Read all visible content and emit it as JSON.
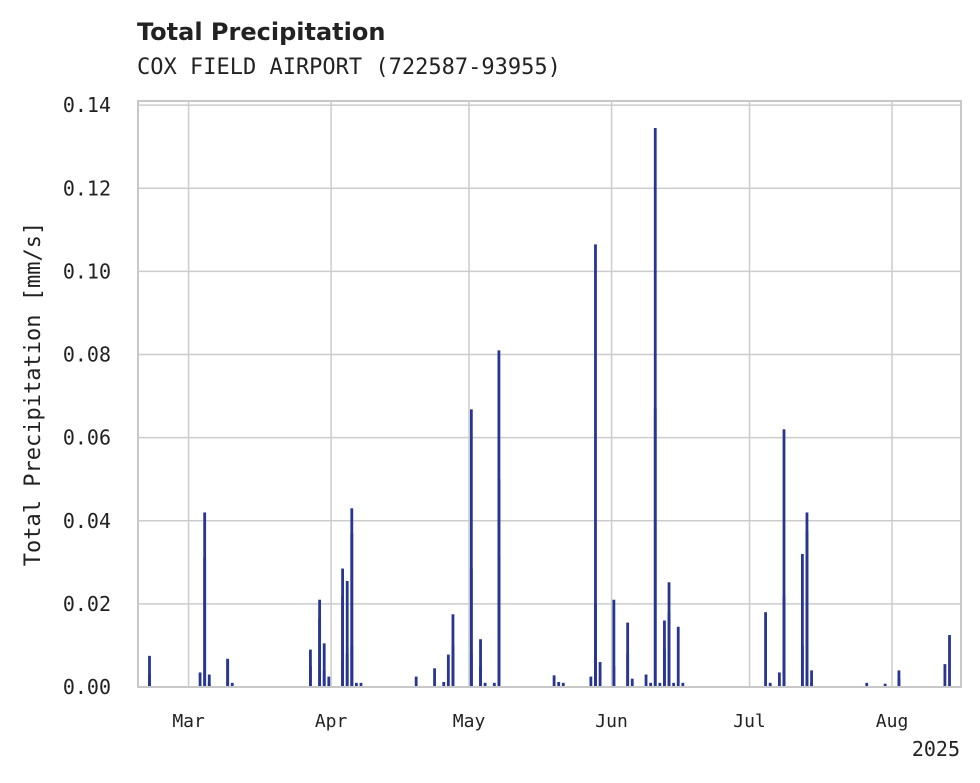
{
  "chart_data": {
    "type": "bar",
    "title": "Total Precipitation",
    "subtitle": "COX FIELD AIRPORT (722587-93955)",
    "ylabel": "Total Precipitation [mm/s]",
    "xlabel": "",
    "x_year_label": "2025",
    "ylim": [
      0,
      0.141
    ],
    "xlim": [
      "2025-02-18",
      "2025-08-16"
    ],
    "grid": true,
    "y_ticks": [
      {
        "value": 0.0,
        "label": "0.00"
      },
      {
        "value": 0.02,
        "label": "0.02"
      },
      {
        "value": 0.04,
        "label": "0.04"
      },
      {
        "value": 0.06,
        "label": "0.06"
      },
      {
        "value": 0.08,
        "label": "0.08"
      },
      {
        "value": 0.1,
        "label": "0.10"
      },
      {
        "value": 0.12,
        "label": "0.12"
      },
      {
        "value": 0.14,
        "label": "0.14"
      }
    ],
    "x_ticks": [
      {
        "date": "2025-03-01",
        "label": "Mar"
      },
      {
        "date": "2025-04-01",
        "label": "Apr"
      },
      {
        "date": "2025-05-01",
        "label": "May"
      },
      {
        "date": "2025-06-01",
        "label": "Jun"
      },
      {
        "date": "2025-07-01",
        "label": "Jul"
      },
      {
        "date": "2025-08-01",
        "label": "Aug"
      }
    ],
    "series": [
      {
        "color": "#283593",
        "points": [
          [
            "2025-02-20",
            0.0075
          ],
          [
            "2025-02-20",
            0.003
          ],
          [
            "2025-03-03",
            0.0035
          ],
          [
            "2025-03-04",
            0.042
          ],
          [
            "2025-03-04",
            0.031
          ],
          [
            "2025-03-05",
            0.003
          ],
          [
            "2025-03-05",
            0.001
          ],
          [
            "2025-03-09",
            0.0065
          ],
          [
            "2025-03-09",
            0.0068
          ],
          [
            "2025-03-10",
            0.001
          ],
          [
            "2025-03-27",
            0.009
          ],
          [
            "2025-03-27",
            0.005
          ],
          [
            "2025-03-29",
            0.021
          ],
          [
            "2025-03-29",
            0.0165
          ],
          [
            "2025-03-30",
            0.0105
          ],
          [
            "2025-03-30",
            0.004
          ],
          [
            "2025-03-31",
            0.0025
          ],
          [
            "2025-04-03",
            0.0285
          ],
          [
            "2025-04-03",
            0.022
          ],
          [
            "2025-04-03",
            0.0065
          ],
          [
            "2025-04-04",
            0.0255
          ],
          [
            "2025-04-04",
            0.008
          ],
          [
            "2025-04-05",
            0.01
          ],
          [
            "2025-04-05",
            0.043
          ],
          [
            "2025-04-05",
            0.037
          ],
          [
            "2025-04-06",
            0.001
          ],
          [
            "2025-04-07",
            0.001
          ],
          [
            "2025-04-19",
            0.0025
          ],
          [
            "2025-04-23",
            0.0045
          ],
          [
            "2025-04-25",
            0.0012
          ],
          [
            "2025-04-26",
            0.0078
          ],
          [
            "2025-04-27",
            0.0175
          ],
          [
            "2025-04-27",
            0.01
          ],
          [
            "2025-05-01",
            0.0668
          ],
          [
            "2025-05-01",
            0.0285
          ],
          [
            "2025-05-01",
            0.008
          ],
          [
            "2025-05-03",
            0.0115
          ],
          [
            "2025-05-03",
            0.005
          ],
          [
            "2025-05-04",
            0.001
          ],
          [
            "2025-05-06",
            0.001
          ],
          [
            "2025-05-07",
            0.0315
          ],
          [
            "2025-05-07",
            0.081
          ],
          [
            "2025-05-07",
            0.05
          ],
          [
            "2025-05-19",
            0.0028
          ],
          [
            "2025-05-20",
            0.0012
          ],
          [
            "2025-05-21",
            0.001
          ],
          [
            "2025-05-27",
            0.0025
          ],
          [
            "2025-05-28",
            0.0105
          ],
          [
            "2025-05-28",
            0.1065
          ],
          [
            "2025-05-28",
            0.02
          ],
          [
            "2025-05-29",
            0.006
          ],
          [
            "2025-06-01",
            0.021
          ],
          [
            "2025-06-01",
            0.005
          ],
          [
            "2025-06-04",
            0.008
          ],
          [
            "2025-06-04",
            0.0155
          ],
          [
            "2025-06-05",
            0.002
          ],
          [
            "2025-06-08",
            0.003
          ],
          [
            "2025-06-09",
            0.001
          ],
          [
            "2025-06-10",
            0.1345
          ],
          [
            "2025-06-10",
            0.067
          ],
          [
            "2025-06-11",
            0.001
          ],
          [
            "2025-06-12",
            0.016
          ],
          [
            "2025-06-12",
            0.009
          ],
          [
            "2025-06-13",
            0.0252
          ],
          [
            "2025-06-13",
            0.018
          ],
          [
            "2025-06-14",
            0.001
          ],
          [
            "2025-06-15",
            0.0145
          ],
          [
            "2025-06-16",
            0.001
          ],
          [
            "2025-07-04",
            0.018
          ],
          [
            "2025-07-05",
            0.001
          ],
          [
            "2025-07-07",
            0.0035
          ],
          [
            "2025-07-08",
            0.022
          ],
          [
            "2025-07-08",
            0.062
          ],
          [
            "2025-07-08",
            0.006
          ],
          [
            "2025-07-12",
            0.01
          ],
          [
            "2025-07-12",
            0.032
          ],
          [
            "2025-07-13",
            0.042
          ],
          [
            "2025-07-13",
            0.0375
          ],
          [
            "2025-07-14",
            0.004
          ],
          [
            "2025-07-14",
            0.001
          ],
          [
            "2025-07-26",
            0.001
          ],
          [
            "2025-07-30",
            0.0008
          ],
          [
            "2025-08-02",
            0.004
          ],
          [
            "2025-08-02",
            0.002
          ],
          [
            "2025-08-12",
            0.0055
          ],
          [
            "2025-08-13",
            0.0125
          ]
        ]
      }
    ]
  }
}
